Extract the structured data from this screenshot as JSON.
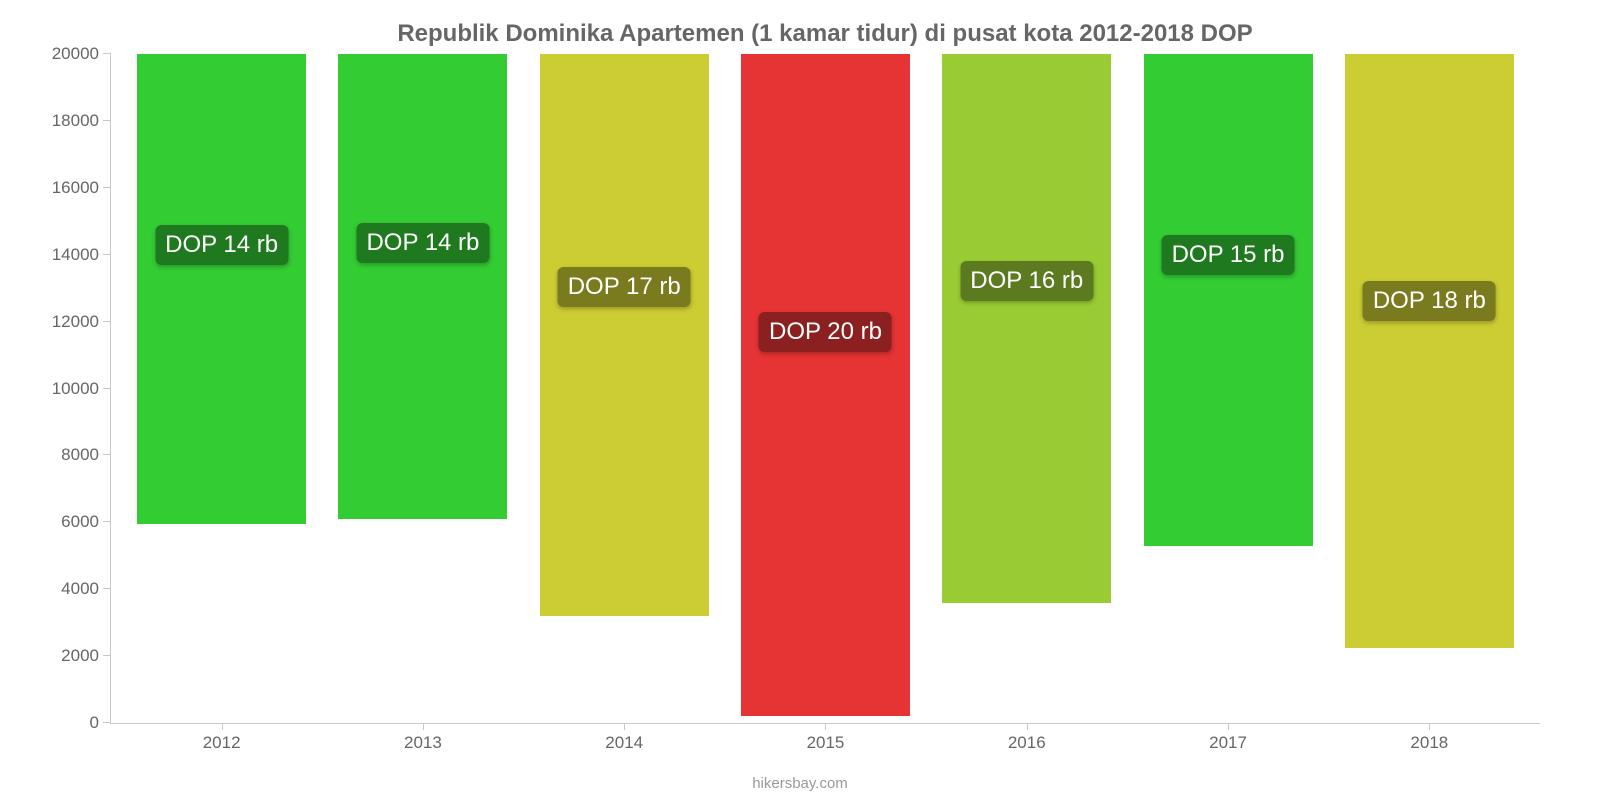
{
  "chart": {
    "type": "bar",
    "title": "Republik Dominika Apartemen (1 kamar tidur) di pusat kota 2012-2018 DOP",
    "title_fontsize": 24,
    "title_color": "#666666",
    "background_color": "#ffffff",
    "axis_color": "#c8c8c8",
    "tick_color": "#666666",
    "tick_fontsize": 17,
    "ylim": [
      0,
      20000
    ],
    "ytick_step": 2000,
    "yticks": [
      0,
      2000,
      4000,
      6000,
      8000,
      10000,
      12000,
      14000,
      16000,
      18000,
      20000
    ],
    "categories": [
      "2012",
      "2013",
      "2014",
      "2015",
      "2016",
      "2017",
      "2018"
    ],
    "values": [
      14050,
      13900,
      16800,
      19800,
      16400,
      14700,
      17750
    ],
    "bar_colors": [
      "#33cc33",
      "#33cc33",
      "#cccc33",
      "#e63333",
      "#99cc33",
      "#33cc33",
      "#cccc33"
    ],
    "bar_width": 0.84,
    "value_labels": [
      "DOP 14 rb",
      "DOP 14 rb",
      "DOP 17 rb",
      "DOP 20 rb",
      "DOP 16 rb",
      "DOP 15 rb",
      "DOP 18 rb"
    ],
    "value_label_bg": [
      "#1f7a1f",
      "#1f7a1f",
      "#7a7a1f",
      "#8c1f1f",
      "#5c7a1f",
      "#1f7a1f",
      "#7a7a1f"
    ],
    "value_label_fontsize": 24,
    "value_label_color": "#ffffff",
    "source": "hikersbay.com",
    "source_color": "#999999",
    "source_fontsize": 15
  }
}
